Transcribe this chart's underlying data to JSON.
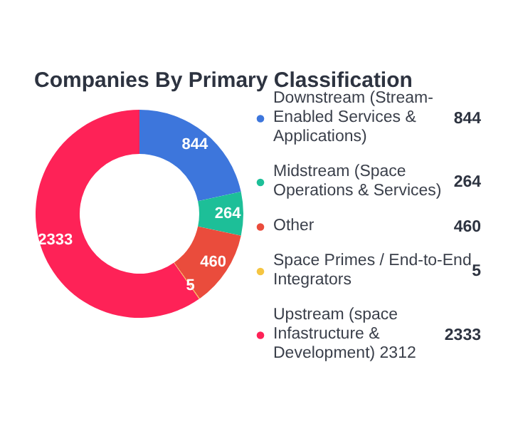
{
  "chart_data": {
    "type": "donut",
    "title": "Companies By Primary Classification",
    "categories": [
      "Downstream (Stream-Enabled Services & Applications)",
      "Midstream (Space Operations & Services)",
      "Other",
      "Space Primes / End-to-End Integrators",
      "Upstream (space Infastructure & Development) 2312"
    ],
    "values": [
      844,
      264,
      460,
      5,
      2333
    ],
    "colors": [
      "#3d76dc",
      "#1dbf98",
      "#ea4c3c",
      "#f5c542",
      "#fe2257"
    ],
    "data_labels": true,
    "annotations": [
      "844",
      "264",
      "460",
      "5",
      "2333"
    ],
    "legend": "right"
  }
}
